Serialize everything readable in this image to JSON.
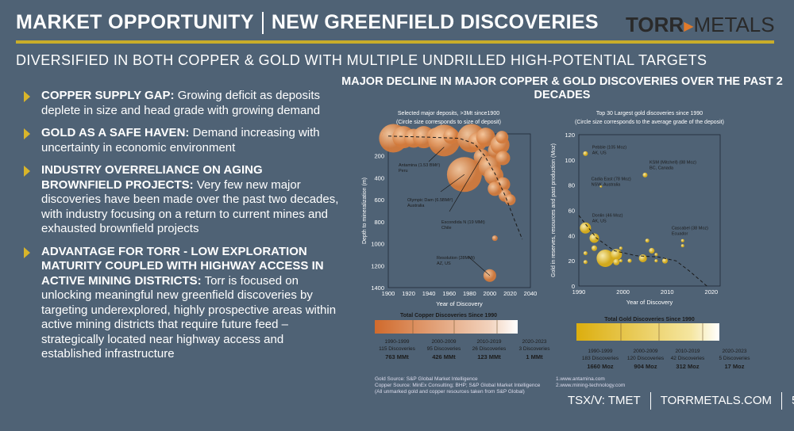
{
  "header": {
    "title_left": "MARKET OPPORTUNITY",
    "title_right": "NEW GREENFIELD DISCOVERIES",
    "logo_bold": "TORR",
    "logo_light": "METALS",
    "subtitle": "DIVERSIFIED IN BOTH COPPER & GOLD WITH MULTIPLE UNDRILLED HIGH-POTENTIAL TARGETS"
  },
  "bullets": [
    {
      "head": "COPPER SUPPLY GAP:",
      "text": " Growing deficit as deposits deplete in size and head grade with growing demand"
    },
    {
      "head": "GOLD AS A SAFE HAVEN:",
      "text": " Demand increasing with uncertainty in economic environment"
    },
    {
      "head": "INDUSTRY OVERRELIANCE ON AGING BROWNFIELD PROJECTS:",
      "text": " Very few new major discoveries have been made over the past two decades, with industry focusing on a return to current mines and exhausted brownfield projects"
    },
    {
      "head": "ADVANTAGE FOR TORR - LOW EXPLORATION MATURITY COUPLED WITH HIGHWAY ACCESS IN ACTIVE MINING DISTRICTS:",
      "text": " Torr is focused on unlocking meaningful new greenfield discoveries by targeting underexplored, highly prospective areas within active mining districts that require future feed – strategically located near highway access and established infrastructure"
    }
  ],
  "chart_heading": "MAJOR DECLINE IN MAJOR COPPER & GOLD DISCOVERIES OVER THE PAST 2 DECADES",
  "chart_data": [
    {
      "type": "scatter",
      "title": "Selected major deposits, >3Mt since1900",
      "subtitle": "(Circle size corresponds to size of deposit)",
      "xlabel": "Year of Discovery",
      "ylabel": "Depth to mineralization (m)",
      "xlim": [
        1900,
        2040
      ],
      "ylim": [
        0,
        1400
      ],
      "y_inverted": true,
      "color": "#d9844a",
      "xticks": [
        1900,
        1920,
        1940,
        1960,
        1980,
        2000,
        2020,
        2040
      ],
      "yticks": [
        0,
        200,
        400,
        600,
        800,
        1000,
        1200,
        1400
      ],
      "points": [
        [
          1905,
          40,
          18
        ],
        [
          1915,
          30,
          14
        ],
        [
          1925,
          40,
          12
        ],
        [
          1935,
          30,
          14
        ],
        [
          1947,
          30,
          12
        ],
        [
          1955,
          60,
          20
        ],
        [
          1962,
          20,
          10
        ],
        [
          1975,
          370,
          22
        ],
        [
          1982,
          40,
          18
        ],
        [
          1988,
          70,
          12
        ],
        [
          1992,
          210,
          10
        ],
        [
          1996,
          30,
          12
        ],
        [
          2000,
          300,
          14
        ],
        [
          2004,
          380,
          12
        ],
        [
          2006,
          150,
          10
        ],
        [
          2010,
          100,
          12
        ],
        [
          2012,
          30,
          8
        ],
        [
          2013,
          220,
          9
        ],
        [
          2013,
          460,
          9
        ],
        [
          2015,
          560,
          8
        ],
        [
          2005,
          500,
          9
        ],
        [
          2020,
          600,
          7
        ],
        [
          2005,
          950,
          3.5
        ],
        [
          2000,
          1290,
          8
        ]
      ],
      "annotations": [
        {
          "text": "Antamina (1.53 BMt¹)",
          "text2": "Peru",
          "x": 1955,
          "y": 120
        },
        {
          "text": "Olympic Dam (6.5BMt²)",
          "text2": "Australia",
          "x": 1975,
          "y": 370
        },
        {
          "text": "Escondida N (19 MMt)",
          "text2": "Chile",
          "x": 1992,
          "y": 210
        },
        {
          "text": "Resolution (28MMt)",
          "text2": "AZ, US",
          "x": 2000,
          "y": 1290
        }
      ],
      "trend": [
        [
          1900,
          20
        ],
        [
          1940,
          30
        ],
        [
          1970,
          40
        ],
        [
          1985,
          90
        ],
        [
          1995,
          200
        ],
        [
          2005,
          360
        ],
        [
          2015,
          560
        ],
        [
          2025,
          800
        ],
        [
          2032,
          960
        ]
      ]
    },
    {
      "type": "scatter",
      "title": "Top 30 Largest gold discoveries since 1990",
      "subtitle": "(Circle size corresponds to the average grade of the deposit)",
      "xlabel": "Year of Discovery",
      "ylabel": "Gold in reserves, resources and past production (Moz)",
      "xlim": [
        1990,
        2022
      ],
      "ylim": [
        0,
        120
      ],
      "color": "#e8c43a",
      "xticks": [
        1990,
        2000,
        2010,
        2020
      ],
      "yticks": [
        0,
        20,
        40,
        60,
        80,
        100,
        120
      ],
      "points": [
        [
          1991.5,
          105,
          3
        ],
        [
          1995,
          79,
          1.5
        ],
        [
          2005,
          88,
          3
        ],
        [
          1991.5,
          46,
          7
        ],
        [
          1993.5,
          38,
          6
        ],
        [
          1993.5,
          30,
          3.5
        ],
        [
          1991.5,
          26,
          2.5
        ],
        [
          1991.5,
          19,
          2.5
        ],
        [
          1996,
          22,
          11
        ],
        [
          1998.5,
          25,
          7
        ],
        [
          1998.5,
          19,
          4
        ],
        [
          1999.5,
          30,
          2
        ],
        [
          1999.5,
          20,
          2
        ],
        [
          2001.5,
          20,
          2.5
        ],
        [
          2004.5,
          22,
          5
        ],
        [
          2005.5,
          36,
          2.5
        ],
        [
          2006.5,
          28,
          3.5
        ],
        [
          2007.5,
          25,
          2
        ],
        [
          2007.5,
          20,
          2
        ],
        [
          2009.5,
          20,
          3.5
        ],
        [
          2013.5,
          36,
          2
        ],
        [
          2013.5,
          32,
          2
        ]
      ],
      "annotations": [
        {
          "text": "Pebble (105 Moz)",
          "text2": "AK, US",
          "x": 1993,
          "y": 109
        },
        {
          "text": "Cadia East (78 Moz)",
          "text2": "NSW, Australia",
          "x": 1992.8,
          "y": 84
        },
        {
          "text": "KSM (Mitchell) (88 Moz)",
          "text2": "BC, Canada",
          "x": 2006,
          "y": 97
        },
        {
          "text": "Donlin (46 Moz)",
          "text2": "AK, US",
          "x": 1993,
          "y": 55
        },
        {
          "text": "Cascabel (38 Moz)",
          "text2": "Ecuador",
          "x": 2011,
          "y": 45
        }
      ],
      "trend": [
        [
          1990,
          56
        ],
        [
          1994,
          38
        ],
        [
          1998,
          28
        ],
        [
          2003,
          24
        ],
        [
          2008,
          23
        ],
        [
          2012,
          20
        ],
        [
          2015,
          12
        ],
        [
          2019,
          0
        ]
      ]
    }
  ],
  "copper_totals": {
    "title": "Total Copper Discoveries Since 1990",
    "periods": [
      {
        "range": "1990-1999",
        "count": "115 Discoveries",
        "total": "763 MMt"
      },
      {
        "range": "2000-2009",
        "count": "95 Discoveries",
        "total": "426 MMt"
      },
      {
        "range": "2010-2019",
        "count": "26 Discoveries",
        "total": "123 MMt"
      },
      {
        "range": "2020-2023",
        "count": "3 Discoveries",
        "total": "1 MMt"
      }
    ]
  },
  "gold_totals": {
    "title": "Total Gold Discoveries Since 1990",
    "periods": [
      {
        "range": "1990-1999",
        "count": "183 Discoveries",
        "total": "1660 Moz"
      },
      {
        "range": "2000-2009",
        "count": "120 Discoveries",
        "total": "904 Moz"
      },
      {
        "range": "2010-2019",
        "count": "42 Discoveries",
        "total": "312 Moz"
      },
      {
        "range": "2020-2023",
        "count": "5 Discoveries",
        "total": "17 Moz"
      }
    ]
  },
  "sources": [
    "Gold Source: S&P Global Market Intelligence",
    "Copper Source: MinEx Consulting; BHP; S&P Global Market Intelligence",
    "(All unmarked gold and copper resources taken from S&P Global)"
  ],
  "refs": [
    "1.www.antamina.com",
    "2.www.mining-technology.com"
  ],
  "footer": {
    "ticker": "TSX/V: TMET",
    "website": "TORRMETALS.COM",
    "page": "5"
  }
}
